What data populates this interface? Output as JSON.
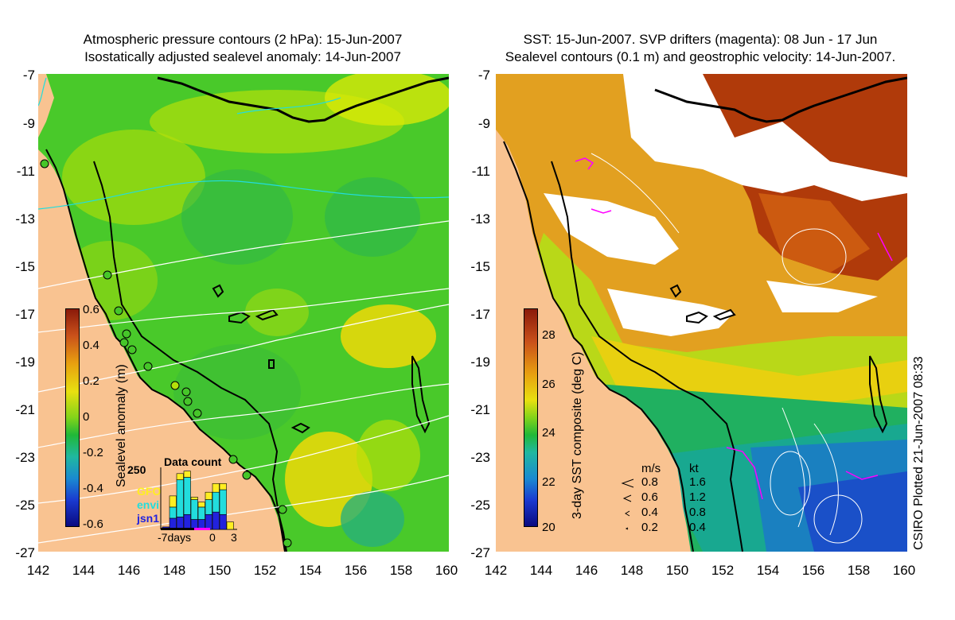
{
  "left_panel": {
    "title_line1": "Atmospheric pressure contours (2 hPa): 15-Jun-2007",
    "title_line2": "Isostatically adjusted sealevel anomaly: 14-Jun-2007",
    "colorbar": {
      "label": "Sealevel anomaly (m)",
      "ticks": [
        "0.6",
        "0.4",
        "0.2",
        "0",
        "-0.2",
        "-0.4",
        "-0.6"
      ],
      "range": [
        -0.6,
        0.6
      ]
    },
    "data_count": {
      "title": "Data count",
      "y_max_label": "250",
      "sources": [
        {
          "name": "GFO",
          "color": "#ffee22"
        },
        {
          "name": "envi",
          "color": "#22dddd"
        },
        {
          "name": "jsn1",
          "color": "#2222dd"
        }
      ],
      "x_labels": [
        "-7days",
        "0",
        "3"
      ],
      "bars": [
        {
          "day": -7,
          "jsn1": 10,
          "envi": 0,
          "gfo": 0
        },
        {
          "day": -6,
          "jsn1": 45,
          "envi": 45,
          "gfo": 45
        },
        {
          "day": -5,
          "jsn1": 50,
          "envi": 150,
          "gfo": 25
        },
        {
          "day": -4,
          "jsn1": 60,
          "envi": 150,
          "gfo": 25
        },
        {
          "day": -3,
          "jsn1": 40,
          "envi": 80,
          "gfo": 10
        },
        {
          "day": -2,
          "jsn1": 40,
          "envi": 50,
          "gfo": 20
        },
        {
          "day": -1,
          "jsn1": 60,
          "envi": 60,
          "gfo": 30
        },
        {
          "day": 0,
          "jsn1": 70,
          "envi": 80,
          "gfo": 35
        },
        {
          "day": 1,
          "jsn1": 60,
          "envi": 100,
          "gfo": 25
        },
        {
          "day": 2,
          "jsn1": 0,
          "envi": 0,
          "gfo": 30
        }
      ]
    }
  },
  "right_panel": {
    "title_line1": "SST: 15-Jun-2007. SVP drifters (magenta): 08 Jun - 17 Jun",
    "title_line2": "Sealevel contours (0.1 m) and geostrophic velocity: 14-Jun-2007.",
    "colorbar": {
      "label": "3-day SST composite (deg C)",
      "ticks": [
        "28",
        "26",
        "24",
        "22",
        "20"
      ],
      "range": [
        20,
        29
      ]
    },
    "speed_legend": {
      "header_ms": "m/s",
      "header_kt": "kt",
      "rows": [
        {
          "ms": "0.8",
          "kt": "1.6"
        },
        {
          "ms": "0.6",
          "kt": "1.2"
        },
        {
          "ms": "0.4",
          "kt": "0.8"
        },
        {
          "ms": "0.2",
          "kt": "0.4"
        }
      ]
    },
    "credit": "CSIRO Plotted 21-Jun-2007 08:33"
  },
  "axes": {
    "lat_ticks": [
      "-7",
      "-9",
      "-11",
      "-13",
      "-15",
      "-17",
      "-19",
      "-21",
      "-23",
      "-25",
      "-27"
    ],
    "lon_ticks": [
      "142",
      "144",
      "146",
      "148",
      "150",
      "152",
      "154",
      "156",
      "158",
      "160"
    ],
    "lat_range": [
      -27,
      -7
    ],
    "lon_range": [
      142,
      160
    ]
  },
  "colors": {
    "land": "#f9c391",
    "coastline": "#000000",
    "pressure_contour": "#ffffff",
    "drifter": "#ff00ff"
  }
}
